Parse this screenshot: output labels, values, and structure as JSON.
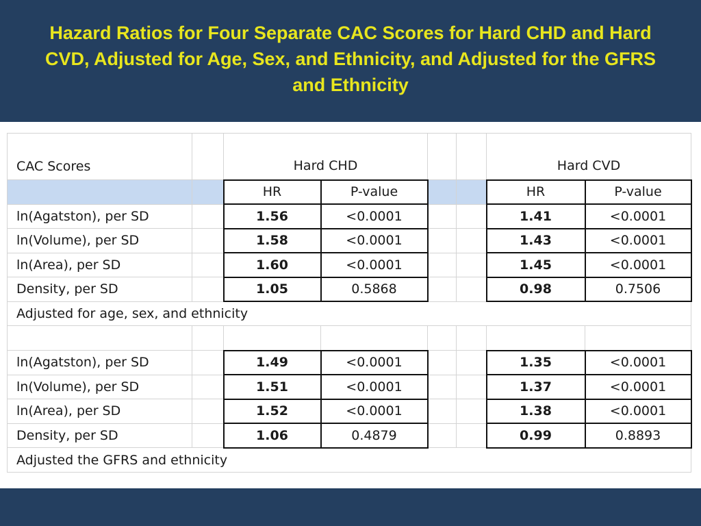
{
  "title": "Hazard Ratios for Four Separate CAC Scores for Hard CHD and Hard CVD, Adjusted for Age, Sex, and Ethnicity, and Adjusted for the GFRS and Ethnicity",
  "table": {
    "row_header": "CAC Scores",
    "group_chd": "Hard CHD",
    "group_cvd": "Hard CVD",
    "col_hr": "HR",
    "col_p": "P-value",
    "section1": {
      "rows": [
        {
          "label": "ln(Agatston), per SD",
          "chd_hr": "1.56",
          "chd_p": "<0.0001",
          "cvd_hr": "1.41",
          "cvd_p": "<0.0001"
        },
        {
          "label": "ln(Volume), per SD",
          "chd_hr": "1.58",
          "chd_p": "<0.0001",
          "cvd_hr": "1.43",
          "cvd_p": "<0.0001"
        },
        {
          "label": "ln(Area), per SD",
          "chd_hr": "1.60",
          "chd_p": "<0.0001",
          "cvd_hr": "1.45",
          "cvd_p": "<0.0001"
        },
        {
          "label": "Density, per SD",
          "chd_hr": "1.05",
          "chd_p": "0.5868",
          "cvd_hr": "0.98",
          "cvd_p": "0.7506"
        }
      ],
      "note": "Adjusted for age, sex, and ethnicity"
    },
    "section2": {
      "rows": [
        {
          "label": "ln(Agatston), per SD",
          "chd_hr": "1.49",
          "chd_p": "<0.0001",
          "cvd_hr": "1.35",
          "cvd_p": "<0.0001"
        },
        {
          "label": "ln(Volume), per SD",
          "chd_hr": "1.51",
          "chd_p": "<0.0001",
          "cvd_hr": "1.37",
          "cvd_p": "<0.0001"
        },
        {
          "label": "ln(Area), per SD",
          "chd_hr": "1.52",
          "chd_p": "<0.0001",
          "cvd_hr": "1.38",
          "cvd_p": "<0.0001"
        },
        {
          "label": "Density, per SD",
          "chd_hr": "1.06",
          "chd_p": "0.4879",
          "cvd_hr": "0.99",
          "cvd_p": "0.8893"
        }
      ],
      "note": "Adjusted the GFRS and ethnicity"
    }
  },
  "colors": {
    "title_bar": "#243f60",
    "title_text": "#e8e61e",
    "highlight_row": "#c6d9f1"
  }
}
